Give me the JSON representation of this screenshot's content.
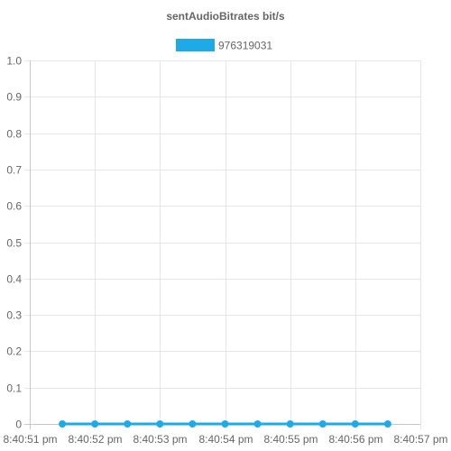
{
  "chart_data": {
    "type": "line",
    "title": "sentAudioBitrates bit/s",
    "xlabel": "",
    "ylabel": "",
    "legend_position": "top",
    "grid": true,
    "x_tick_labels": [
      "8:40:51 pm",
      "8:40:52 pm",
      "8:40:53 pm",
      "8:40:54 pm",
      "8:40:55 pm",
      "8:40:56 pm",
      "8:40:57 pm"
    ],
    "xlim": [
      "8:40:51 pm",
      "8:40:57 pm"
    ],
    "y_tick_labels": [
      "1.0",
      "0.9",
      "0.8",
      "0.7",
      "0.6",
      "0.5",
      "0.4",
      "0.3",
      "0.2",
      "0.1",
      "0"
    ],
    "ylim": [
      0,
      1
    ],
    "series": [
      {
        "name": "976319031",
        "color": "#1EAAE7",
        "x": [
          "8:40:51.5 pm",
          "8:40:52.0 pm",
          "8:40:52.5 pm",
          "8:40:53.0 pm",
          "8:40:53.5 pm",
          "8:40:54.0 pm",
          "8:40:54.5 pm",
          "8:40:55.0 pm",
          "8:40:55.5 pm",
          "8:40:56.0 pm",
          "8:40:56.5 pm"
        ],
        "y": [
          0,
          0,
          0,
          0,
          0,
          0,
          0,
          0,
          0,
          0,
          0
        ]
      }
    ]
  },
  "colors": {
    "grid": "#E6E6E6",
    "axis": "#C8C8C8",
    "text": "#666666",
    "series": "#1EAAE7"
  }
}
